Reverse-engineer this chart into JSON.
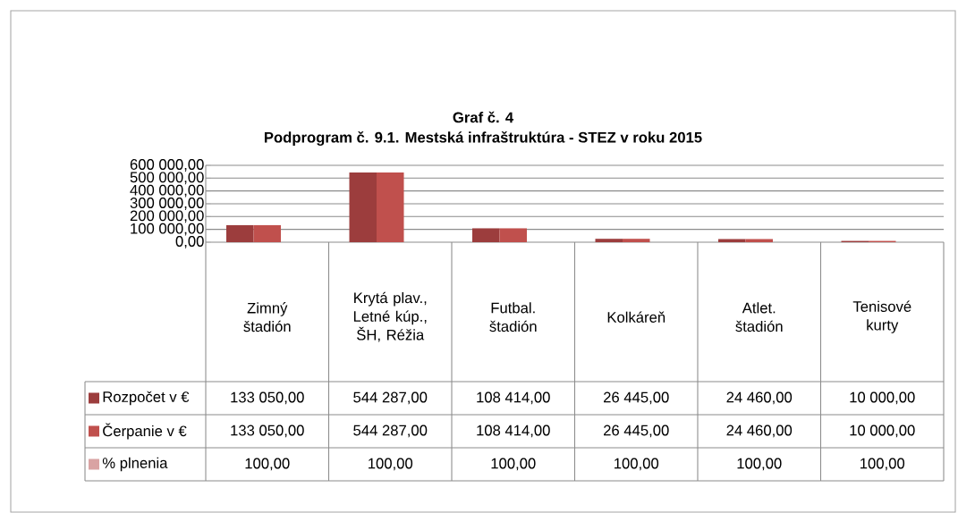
{
  "chart_data": {
    "type": "bar",
    "title": "Graf č. 4",
    "subtitle": "Podprogram č. 9.1. Mestská infraštruktúra - STEZ v roku 2015",
    "categories": [
      "Zimný štadión",
      "Krytá plav., Letné kúp., ŠH, Réžia",
      "Futbal. štadión",
      "Kolkáreň",
      "Atlet. štadión",
      "Tenisové kurty"
    ],
    "series": [
      {
        "name": "Rozpočet v €",
        "color": "#9c3d3d",
        "values": [
          133050,
          544287,
          108414,
          26445,
          24460,
          10000
        ],
        "value_labels": [
          "133 050,00",
          "544 287,00",
          "108 414,00",
          "26 445,00",
          "24 460,00",
          "10 000,00"
        ]
      },
      {
        "name": "Čerpanie v €",
        "color": "#c0504d",
        "values": [
          133050,
          544287,
          108414,
          26445,
          24460,
          10000
        ],
        "value_labels": [
          "133 050,00",
          "544 287,00",
          "108 414,00",
          "26 445,00",
          "24 460,00",
          "10 000,00"
        ]
      },
      {
        "name": "% plnenia",
        "color": "#d9a3a3",
        "values": [
          100,
          100,
          100,
          100,
          100,
          100
        ],
        "value_labels": [
          "100,00",
          "100,00",
          "100,00",
          "100,00",
          "100,00",
          "100,00"
        ]
      }
    ],
    "ylim": [
      0,
      600000
    ],
    "yticks": [
      {
        "value": 0,
        "label": "0,00"
      },
      {
        "value": 100000,
        "label": "100 000,00"
      },
      {
        "value": 200000,
        "label": "200 000,00"
      },
      {
        "value": 300000,
        "label": "300 000,00"
      },
      {
        "value": 400000,
        "label": "400 000,00"
      },
      {
        "value": 500000,
        "label": "500 000,00"
      },
      {
        "value": 600000,
        "label": "600 000,00"
      }
    ],
    "grid": "y",
    "legend": "bottom"
  }
}
